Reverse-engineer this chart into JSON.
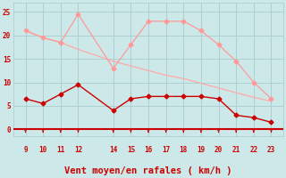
{
  "x": [
    9,
    10,
    11,
    12,
    14,
    15,
    16,
    17,
    18,
    19,
    20,
    21,
    22,
    23
  ],
  "rafales": [
    21,
    19.5,
    18.5,
    24.5,
    13,
    18,
    23,
    23,
    23,
    21,
    18,
    14.5,
    10,
    6.5
  ],
  "vent_moyen": [
    6.5,
    5.5,
    7.5,
    9.5,
    4,
    6.5,
    7,
    7,
    7,
    7,
    6.5,
    3,
    2.5,
    1.5
  ],
  "tendance": [
    21,
    19.5,
    18.5,
    17,
    14.5,
    13.5,
    12.5,
    11.5,
    10.8,
    9.8,
    8.8,
    7.8,
    6.8,
    6.0
  ],
  "bg_color": "#cce8e8",
  "grid_color": "#aacccc",
  "line_color_rafales": "#ff9999",
  "line_color_vent": "#cc0000",
  "line_color_tendance": "#ffaaaa",
  "xlabel": "Vent moyen/en rafales ( km/h )",
  "ylim": [
    -1.5,
    27
  ],
  "yticks": [
    0,
    5,
    10,
    15,
    20,
    25
  ],
  "tick_color": "#cc0000",
  "arrow_color": "#cc0000",
  "hline_color": "#cc0000"
}
